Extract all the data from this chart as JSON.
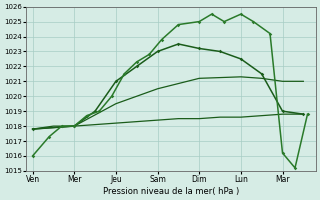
{
  "xlabel": "Pression niveau de la mer( hPa )",
  "ylim": [
    1015,
    1026
  ],
  "xlim": [
    -0.15,
    6.8
  ],
  "yticks": [
    1015,
    1016,
    1017,
    1018,
    1019,
    1020,
    1021,
    1022,
    1023,
    1024,
    1025,
    1026
  ],
  "day_labels": [
    "Ven",
    "Mer",
    "Jeu",
    "Sam",
    "Dim",
    "Lun",
    "Mar"
  ],
  "day_positions": [
    0,
    1,
    2,
    3,
    4,
    5,
    6
  ],
  "background_color": "#d6ece5",
  "grid_color": "#a8cdc5",
  "color_dark": "#1a5c1a",
  "color_mid": "#2a7a2a",
  "figsize": [
    3.2,
    2.0
  ],
  "dpi": 100,
  "line1_x": [
    0,
    0.5,
    1.0,
    1.5,
    2.0,
    2.5,
    3.0,
    3.5,
    4.0,
    4.5,
    5.0,
    5.5,
    6.0,
    6.5
  ],
  "line1_y": [
    1017.8,
    1018.0,
    1018.0,
    1018.1,
    1018.2,
    1018.3,
    1018.4,
    1018.5,
    1018.5,
    1018.6,
    1018.6,
    1018.7,
    1018.8,
    1018.8
  ],
  "line2_x": [
    0,
    1.0,
    2.0,
    3.0,
    4.0,
    5.0,
    5.5,
    6.0,
    6.5
  ],
  "line2_y": [
    1017.8,
    1018.0,
    1019.5,
    1020.5,
    1021.2,
    1021.3,
    1021.2,
    1021.0,
    1021.0
  ],
  "line3_x": [
    0,
    1.0,
    1.5,
    2.0,
    2.5,
    3.0,
    3.5,
    4.0,
    4.5,
    5.0,
    5.5,
    6.0,
    6.5
  ],
  "line3_y": [
    1017.8,
    1018.0,
    1019.0,
    1021.0,
    1022.0,
    1023.0,
    1023.5,
    1023.2,
    1023.0,
    1022.5,
    1021.5,
    1019.0,
    1018.8
  ],
  "line4_x": [
    0,
    0.4,
    0.7,
    1.0,
    1.3,
    1.6,
    1.9,
    2.2,
    2.5,
    2.8,
    3.1,
    3.5,
    4.0,
    4.3,
    4.6,
    5.0,
    5.3,
    5.7,
    6.0,
    6.3,
    6.6
  ],
  "line4_y": [
    1016.0,
    1017.3,
    1018.0,
    1018.0,
    1018.7,
    1019.0,
    1020.0,
    1021.5,
    1022.3,
    1022.8,
    1023.8,
    1024.8,
    1025.0,
    1025.5,
    1025.0,
    1025.5,
    1025.0,
    1024.2,
    1016.2,
    1015.2,
    1018.8
  ]
}
